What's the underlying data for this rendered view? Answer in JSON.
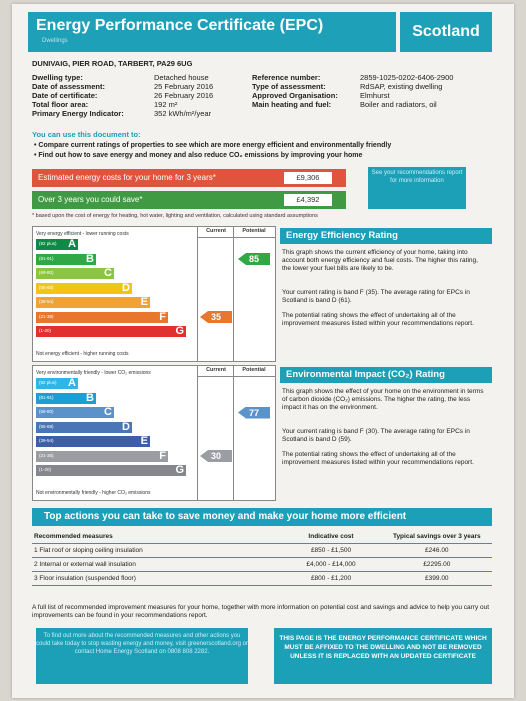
{
  "header": {
    "title": "Energy Performance Certificate (EPC)",
    "subtitle": "Dwellings",
    "region": "Scotland"
  },
  "address": "DUNIVAIG, PIER ROAD, TARBERT, PA29 6UG",
  "property_left": [
    {
      "label": "Dwelling type:",
      "value": "Detached house"
    },
    {
      "label": "Date of assessment:",
      "value": "25 February 2016"
    },
    {
      "label": "Date of certificate:",
      "value": "26 February 2016"
    },
    {
      "label": "Total floor area:",
      "value": "192 m²"
    },
    {
      "label": "Primary Energy Indicator:",
      "value": "352 kWh/m²/year"
    }
  ],
  "property_right": [
    {
      "label": "Reference number:",
      "value": "2859-1025-0202-6406-2900"
    },
    {
      "label": "Type of assessment:",
      "value": "RdSAP, existing dwelling"
    },
    {
      "label": "Approved Organisation:",
      "value": "Elmhurst"
    },
    {
      "label": "Main heating and fuel:",
      "value": "Boiler and radiators, oil"
    }
  ],
  "use": {
    "title": "You can use this document to:",
    "bullets": [
      "Compare current ratings of properties to see which are more energy efficient and environmentally friendly",
      "Find out how to save energy and money and also reduce CO₂ emissions by improving your home"
    ]
  },
  "costs": {
    "estimated_label": "Estimated energy costs for your home for 3 years*",
    "estimated_value": "£9,306",
    "savings_label": "Over 3 years you could save*",
    "savings_value": "£4,392",
    "see_box": "See your recommendations report for more information",
    "footnote": "* based upon the cost of energy for heating, hot water, lighting and ventilation, calculated using standard assumptions"
  },
  "colors": {
    "accent": "#1ba0b8",
    "estimated_bar": "#e0533c",
    "savings_bar": "#3f9a43"
  },
  "efficiency": {
    "top_label": "Very energy efficient - lower running costs",
    "bottom_label": "Not energy efficient - higher running costs",
    "current_header": "Current",
    "potential_header": "Potential",
    "bands": [
      {
        "range": "(92 plus)",
        "letter": "A",
        "color": "#0f8a46"
      },
      {
        "range": "(81-91)",
        "letter": "B",
        "color": "#2fa845"
      },
      {
        "range": "(69-80)",
        "letter": "C",
        "color": "#8cc541"
      },
      {
        "range": "(55-68)",
        "letter": "D",
        "color": "#f2c419"
      },
      {
        "range": "(39-54)",
        "letter": "E",
        "color": "#f0a237"
      },
      {
        "range": "(21-38)",
        "letter": "F",
        "color": "#e8762c"
      },
      {
        "range": "(1-20)",
        "letter": "G",
        "color": "#e0302f"
      }
    ],
    "current": "35",
    "potential": "85",
    "current_band": 5,
    "potential_band": 1,
    "title": "Energy Efficiency Rating",
    "text1": "This graph shows the current efficiency of your home, taking into account both energy efficiency and fuel costs. The higher this rating, the lower your fuel bills are likely to be.",
    "text2": "Your current rating is band F (35). The average rating for EPCs in Scotland is band D (61).",
    "text3": "The potential rating shows the effect of undertaking all of the improvement measures listed within your recommendations report."
  },
  "environmental": {
    "top_label": "Very environmentally friendly - lower CO₂ emissions",
    "bottom_label": "Not environmentally friendly - higher CO₂ emissions",
    "current_header": "Current",
    "potential_header": "Potential",
    "bands": [
      {
        "range": "(92 plus)",
        "letter": "A",
        "color": "#2fb6e4"
      },
      {
        "range": "(81-91)",
        "letter": "B",
        "color": "#1d9fd6"
      },
      {
        "range": "(69-80)",
        "letter": "C",
        "color": "#5a92c9"
      },
      {
        "range": "(55-68)",
        "letter": "D",
        "color": "#4b76b5"
      },
      {
        "range": "(39-54)",
        "letter": "E",
        "color": "#3e5fa6"
      },
      {
        "range": "(21-38)",
        "letter": "F",
        "color": "#9b9da2"
      },
      {
        "range": "(1-20)",
        "letter": "G",
        "color": "#85878c"
      }
    ],
    "current": "30",
    "potential": "77",
    "current_band": 5,
    "potential_band": 2,
    "title": "Environmental Impact (CO₂) Rating",
    "text1": "This graph shows the effect of your home on the environment in terms of carbon dioxide (CO₂) emissions. The higher the rating, the less impact it has on the environment.",
    "text2": "Your current rating is band F (30). The average rating for EPCs in Scotland is band D (59).",
    "text3": "The potential rating shows the effect of undertaking all of the improvement measures listed within your recommendations report."
  },
  "actions": {
    "title": "Top actions you can take to save money and make your home more efficient",
    "headers": [
      "Recommended measures",
      "Indicative cost",
      "Typical savings over 3 years"
    ],
    "rows": [
      [
        "1 Flat roof or sloping ceiling insulation",
        "£850 - £1,500",
        "£246.00"
      ],
      [
        "2 Internal or external wall insulation",
        "£4,000 - £14,000",
        "£2295.00"
      ],
      [
        "3 Floor insulation (suspended floor)",
        "£800 - £1,200",
        "£399.00"
      ]
    ],
    "full_list": "A full list of recommended improvement measures for your home, together with more information on potential cost and savings and advice to help you carry out improvements can be found in your recommendations report."
  },
  "bottom": {
    "left": "To find out more about the recommended measures and other actions you could take today to stop wasting energy and money, visit greenerscotland.org or contact Home Energy Scotland on 0808 808 2282.",
    "right": "THIS PAGE IS THE ENERGY PERFORMANCE CERTIFICATE WHICH MUST BE AFFIXED TO THE DWELLING AND NOT BE REMOVED UNLESS IT IS REPLACED WITH AN UPDATED CERTIFICATE"
  }
}
